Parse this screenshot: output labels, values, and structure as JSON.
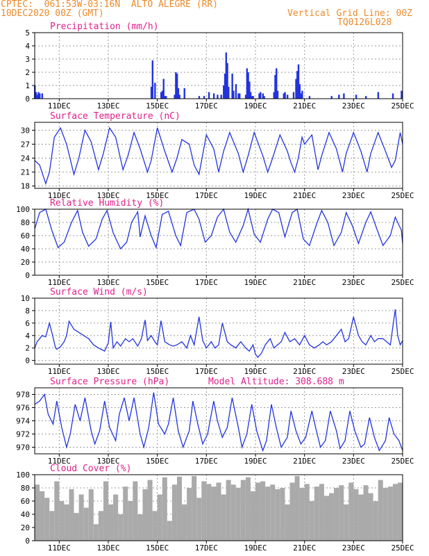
{
  "header": {
    "left_line1": "CPTEC:  061:53W-03:16N  ALTO ALEGRE (RR)",
    "left_line2": "10DEC2020 00Z (GMT)",
    "right_line1": "Vertical Grid Line: 00Z",
    "right_line2": "TQ0126L028"
  },
  "colors": {
    "header": "#ee8a2a",
    "title": "#e0208a",
    "line": "#2233dd",
    "cloud": "#aaaaaa"
  },
  "x_axis": {
    "ticks": [
      "11DEC",
      "13DEC",
      "15DEC",
      "17DEC",
      "19DEC",
      "21DEC",
      "23DEC",
      "25DEC"
    ],
    "range_days": [
      10,
      25
    ]
  },
  "chart_data": [
    {
      "type": "bar",
      "title": "Precipitation (mm/h)",
      "ylim": [
        0,
        5
      ],
      "yticks": [
        0,
        1,
        2,
        3,
        4,
        5
      ],
      "grid": true,
      "x": [
        10.0,
        10.05,
        10.1,
        10.15,
        10.2,
        10.3,
        14.75,
        14.8,
        14.9,
        15.15,
        15.2,
        15.25,
        15.3,
        15.35,
        15.7,
        15.75,
        15.8,
        15.85,
        15.9,
        16.1,
        16.7,
        16.9,
        17.1,
        17.3,
        17.45,
        17.6,
        17.7,
        17.75,
        17.8,
        17.85,
        17.9,
        18.05,
        18.1,
        18.2,
        18.3,
        18.35,
        18.6,
        18.65,
        18.7,
        18.75,
        18.8,
        18.85,
        18.9,
        19.15,
        19.2,
        19.3,
        19.35,
        19.75,
        19.8,
        19.85,
        19.9,
        20.15,
        20.2,
        20.3,
        20.55,
        20.65,
        20.7,
        20.75,
        20.8,
        20.85,
        20.9,
        21.2,
        22.1,
        22.4,
        22.6,
        23.1,
        23.5,
        24.0,
        24.6,
        24.95
      ],
      "values": [
        1.0,
        0.5,
        0.3,
        0.5,
        0.4,
        0.4,
        0.9,
        2.9,
        1.2,
        0.5,
        0.6,
        1.5,
        0.2,
        0.2,
        0.3,
        2.0,
        1.9,
        0.8,
        0.3,
        0.8,
        0.2,
        0.2,
        0.5,
        0.4,
        0.3,
        0.3,
        1.0,
        1.9,
        3.5,
        2.7,
        0.9,
        1.9,
        0.6,
        1.1,
        0.4,
        0.4,
        0.3,
        2.3,
        2.0,
        1.3,
        0.5,
        0.2,
        0.2,
        0.4,
        0.5,
        0.4,
        0.2,
        0.5,
        1.8,
        2.3,
        0.6,
        0.4,
        0.5,
        0.3,
        0.5,
        1.5,
        2.1,
        2.6,
        1.1,
        0.4,
        0.6,
        0.2,
        0.2,
        0.3,
        0.4,
        0.3,
        0.2,
        0.5,
        0.4,
        0.6
      ]
    },
    {
      "type": "line",
      "title": "Surface Temperature (nC)",
      "ylim": [
        17.5,
        31.7
      ],
      "yticks": [
        18,
        21,
        24,
        27,
        30
      ],
      "grid": true,
      "x": [
        10.0,
        10.2,
        10.45,
        10.6,
        10.8,
        11.05,
        11.3,
        11.6,
        11.8,
        12.05,
        12.3,
        12.6,
        12.8,
        13.05,
        13.3,
        13.6,
        13.8,
        14.05,
        14.3,
        14.6,
        14.75,
        15.0,
        15.3,
        15.6,
        15.8,
        16.0,
        16.3,
        16.5,
        16.7,
        17.0,
        17.3,
        17.5,
        17.7,
        17.95,
        18.3,
        18.5,
        18.7,
        18.95,
        19.3,
        19.5,
        19.7,
        20.0,
        20.3,
        20.45,
        20.6,
        20.75,
        20.9,
        21.0,
        21.3,
        21.55,
        21.7,
        22.0,
        22.3,
        22.55,
        22.7,
        23.0,
        23.3,
        23.55,
        23.7,
        24.0,
        24.3,
        24.55,
        24.7,
        24.9,
        25.0
      ],
      "values": [
        23.5,
        22.5,
        18.5,
        21.0,
        28.5,
        30.5,
        27.0,
        20.5,
        24.0,
        30.0,
        27.5,
        21.5,
        25.0,
        30.5,
        28.5,
        21.5,
        24.5,
        29.5,
        26.0,
        21.0,
        23.5,
        30.5,
        25.5,
        21.0,
        24.0,
        28.0,
        27.0,
        22.5,
        20.5,
        29.0,
        26.0,
        21.0,
        25.5,
        29.5,
        25.0,
        21.0,
        24.5,
        29.5,
        24.5,
        21.0,
        24.0,
        29.0,
        25.5,
        23.0,
        21.0,
        24.0,
        28.5,
        27.0,
        29.0,
        21.5,
        24.5,
        29.5,
        26.0,
        21.0,
        25.0,
        29.5,
        25.5,
        21.0,
        25.0,
        29.5,
        25.5,
        22.0,
        23.5,
        29.5,
        27.0
      ]
    },
    {
      "type": "line",
      "title": "Relative Humidity (%)",
      "ylim": [
        0,
        100
      ],
      "yticks": [
        0,
        20,
        40,
        60,
        80,
        100
      ],
      "grid": true,
      "x": [
        10.0,
        10.2,
        10.45,
        10.7,
        10.95,
        11.2,
        11.5,
        11.75,
        11.95,
        12.2,
        12.5,
        12.75,
        12.95,
        13.2,
        13.5,
        13.75,
        13.95,
        14.2,
        14.3,
        14.5,
        14.75,
        14.95,
        15.2,
        15.45,
        15.75,
        15.95,
        16.2,
        16.5,
        16.7,
        16.95,
        17.2,
        17.45,
        17.7,
        17.95,
        18.2,
        18.5,
        18.7,
        18.95,
        19.2,
        19.5,
        19.7,
        19.95,
        20.2,
        20.5,
        20.7,
        20.95,
        21.2,
        21.5,
        21.7,
        21.95,
        22.2,
        22.5,
        22.7,
        22.95,
        23.2,
        23.5,
        23.7,
        23.95,
        24.2,
        24.5,
        24.7,
        24.95,
        25.0
      ],
      "values": [
        70,
        95,
        100,
        68,
        42,
        50,
        80,
        98,
        65,
        44,
        55,
        85,
        98,
        64,
        40,
        50,
        80,
        96,
        58,
        90,
        60,
        42,
        92,
        97,
        60,
        45,
        95,
        100,
        85,
        50,
        60,
        88,
        100,
        65,
        50,
        75,
        100,
        62,
        50,
        85,
        100,
        95,
        58,
        95,
        100,
        55,
        45,
        78,
        98,
        80,
        45,
        65,
        95,
        75,
        48,
        80,
        96,
        70,
        45,
        60,
        88,
        68,
        48
      ]
    },
    {
      "type": "line",
      "title": "Surface Wind (m/s)",
      "ylim": [
        -0.6,
        10
      ],
      "yticks": [
        0,
        2,
        4,
        6,
        8,
        10
      ],
      "grid": true,
      "x": [
        10.0,
        10.1,
        10.2,
        10.3,
        10.45,
        10.6,
        10.7,
        10.85,
        10.9,
        11.05,
        11.2,
        11.3,
        11.4,
        11.6,
        11.8,
        12.0,
        12.2,
        12.4,
        12.6,
        12.85,
        13.0,
        13.1,
        13.2,
        13.35,
        13.5,
        13.7,
        13.85,
        14.0,
        14.2,
        14.35,
        14.5,
        14.6,
        14.75,
        14.9,
        15.0,
        15.15,
        15.3,
        15.5,
        15.65,
        15.8,
        16.0,
        16.2,
        16.35,
        16.5,
        16.7,
        16.85,
        17.0,
        17.2,
        17.35,
        17.5,
        17.65,
        17.85,
        18.0,
        18.2,
        18.4,
        18.6,
        18.75,
        18.9,
        19.0,
        19.1,
        19.25,
        19.4,
        19.6,
        19.75,
        19.9,
        20.05,
        20.2,
        20.4,
        20.6,
        20.8,
        21.0,
        21.2,
        21.4,
        21.6,
        21.75,
        21.9,
        22.1,
        22.3,
        22.5,
        22.65,
        22.8,
        23.0,
        23.2,
        23.35,
        23.5,
        23.7,
        23.85,
        24.0,
        24.2,
        24.35,
        24.5,
        24.7,
        24.8,
        24.9,
        25.0
      ],
      "values": [
        2.0,
        3.0,
        3.5,
        4.0,
        3.8,
        6.0,
        4.5,
        2.0,
        1.8,
        2.2,
        3.0,
        4.0,
        6.3,
        5.0,
        4.5,
        4.0,
        3.5,
        2.5,
        2.0,
        1.5,
        2.8,
        6.2,
        2.0,
        3.0,
        2.3,
        3.5,
        3.0,
        3.5,
        2.3,
        3.5,
        6.5,
        3.2,
        4.0,
        3.0,
        2.5,
        6.4,
        3.0,
        2.5,
        2.3,
        2.5,
        3.0,
        2.0,
        4.0,
        2.5,
        7.0,
        3.2,
        2.0,
        3.0,
        2.0,
        2.5,
        6.0,
        3.0,
        2.5,
        2.0,
        3.0,
        2.0,
        1.5,
        2.5,
        1.0,
        0.5,
        1.2,
        2.5,
        3.5,
        2.0,
        2.5,
        3.0,
        4.5,
        3.0,
        3.5,
        2.5,
        4.0,
        2.5,
        2.0,
        2.5,
        3.0,
        2.5,
        3.0,
        4.0,
        5.0,
        3.0,
        3.5,
        7.0,
        4.0,
        3.0,
        2.5,
        4.0,
        3.0,
        3.5,
        3.5,
        3.0,
        2.5,
        8.2,
        4.0,
        2.5,
        3.2
      ]
    },
    {
      "type": "line",
      "title": "Surface Pressure (hPa)",
      "annotation": "Model Altitude: 308.688  m",
      "ylim": [
        969.0,
        979.0
      ],
      "yticks": [
        970,
        972,
        974,
        976,
        978
      ],
      "grid": true,
      "x": [
        10.0,
        10.2,
        10.4,
        10.55,
        10.75,
        10.9,
        11.1,
        11.3,
        11.45,
        11.65,
        11.85,
        12.05,
        12.3,
        12.45,
        12.65,
        12.85,
        13.05,
        13.3,
        13.45,
        13.65,
        13.85,
        14.05,
        14.3,
        14.45,
        14.65,
        14.85,
        15.05,
        15.3,
        15.45,
        15.65,
        15.85,
        16.05,
        16.3,
        16.45,
        16.65,
        16.85,
        17.05,
        17.3,
        17.45,
        17.65,
        17.85,
        18.05,
        18.3,
        18.45,
        18.65,
        18.85,
        19.05,
        19.3,
        19.45,
        19.65,
        19.85,
        20.05,
        20.3,
        20.45,
        20.65,
        20.85,
        21.05,
        21.3,
        21.45,
        21.65,
        21.85,
        22.05,
        22.3,
        22.45,
        22.65,
        22.85,
        23.05,
        23.3,
        23.45,
        23.65,
        23.85,
        24.05,
        24.3,
        24.45,
        24.65,
        24.85,
        25.0
      ],
      "values": [
        976.5,
        977.0,
        978.0,
        975.0,
        973.5,
        977.0,
        973.0,
        970.0,
        972.0,
        976.5,
        974.0,
        977.5,
        972.5,
        970.5,
        972.5,
        977.0,
        973.0,
        971.0,
        975.0,
        977.5,
        974.0,
        977.5,
        972.0,
        970.0,
        973.0,
        978.3,
        973.5,
        972.0,
        973.5,
        977.5,
        972.5,
        970.0,
        972.5,
        977.0,
        973.5,
        970.5,
        972.0,
        977.0,
        974.0,
        971.5,
        973.0,
        977.5,
        973.0,
        970.0,
        972.0,
        976.5,
        972.5,
        969.5,
        971.0,
        976.5,
        973.0,
        970.0,
        971.5,
        975.5,
        972.5,
        970.5,
        971.5,
        975.5,
        973.0,
        970.0,
        971.0,
        975.5,
        972.5,
        969.8,
        971.0,
        975.5,
        972.5,
        970.0,
        970.5,
        974.5,
        971.5,
        969.5,
        971.0,
        974.5,
        972.0,
        971.0,
        969.5
      ]
    },
    {
      "type": "area",
      "title": "Cloud Cover (%)",
      "ylim": [
        0,
        100
      ],
      "yticks": [
        0,
        20,
        40,
        60,
        80,
        100
      ],
      "grid": true,
      "x": [
        10.0,
        10.2,
        10.4,
        10.6,
        10.8,
        11.0,
        11.2,
        11.4,
        11.6,
        11.8,
        12.0,
        12.2,
        12.4,
        12.6,
        12.8,
        13.0,
        13.2,
        13.4,
        13.6,
        13.8,
        14.0,
        14.2,
        14.4,
        14.6,
        14.8,
        15.0,
        15.2,
        15.4,
        15.6,
        15.8,
        16.0,
        16.2,
        16.4,
        16.6,
        16.8,
        17.0,
        17.2,
        17.4,
        17.6,
        17.8,
        18.0,
        18.2,
        18.4,
        18.6,
        18.8,
        19.0,
        19.2,
        19.4,
        19.6,
        19.8,
        20.0,
        20.2,
        20.4,
        20.6,
        20.8,
        21.0,
        21.2,
        21.4,
        21.6,
        21.8,
        22.0,
        22.2,
        22.4,
        22.6,
        22.8,
        23.0,
        23.2,
        23.4,
        23.6,
        23.8,
        24.0,
        24.2,
        24.4,
        24.6,
        24.8,
        25.0
      ],
      "values": [
        85,
        75,
        65,
        45,
        90,
        60,
        55,
        78,
        42,
        70,
        50,
        78,
        25,
        45,
        90,
        55,
        70,
        40,
        82,
        60,
        90,
        40,
        78,
        92,
        45,
        70,
        96,
        30,
        85,
        97,
        55,
        80,
        98,
        65,
        90,
        86,
        82,
        88,
        70,
        92,
        85,
        80,
        92,
        96,
        75,
        88,
        90,
        82,
        85,
        78,
        80,
        55,
        88,
        98,
        80,
        86,
        60,
        82,
        86,
        68,
        72,
        80,
        84,
        55,
        88,
        78,
        70,
        84,
        72,
        60,
        92,
        80,
        82,
        86,
        88,
        90
      ]
    }
  ]
}
